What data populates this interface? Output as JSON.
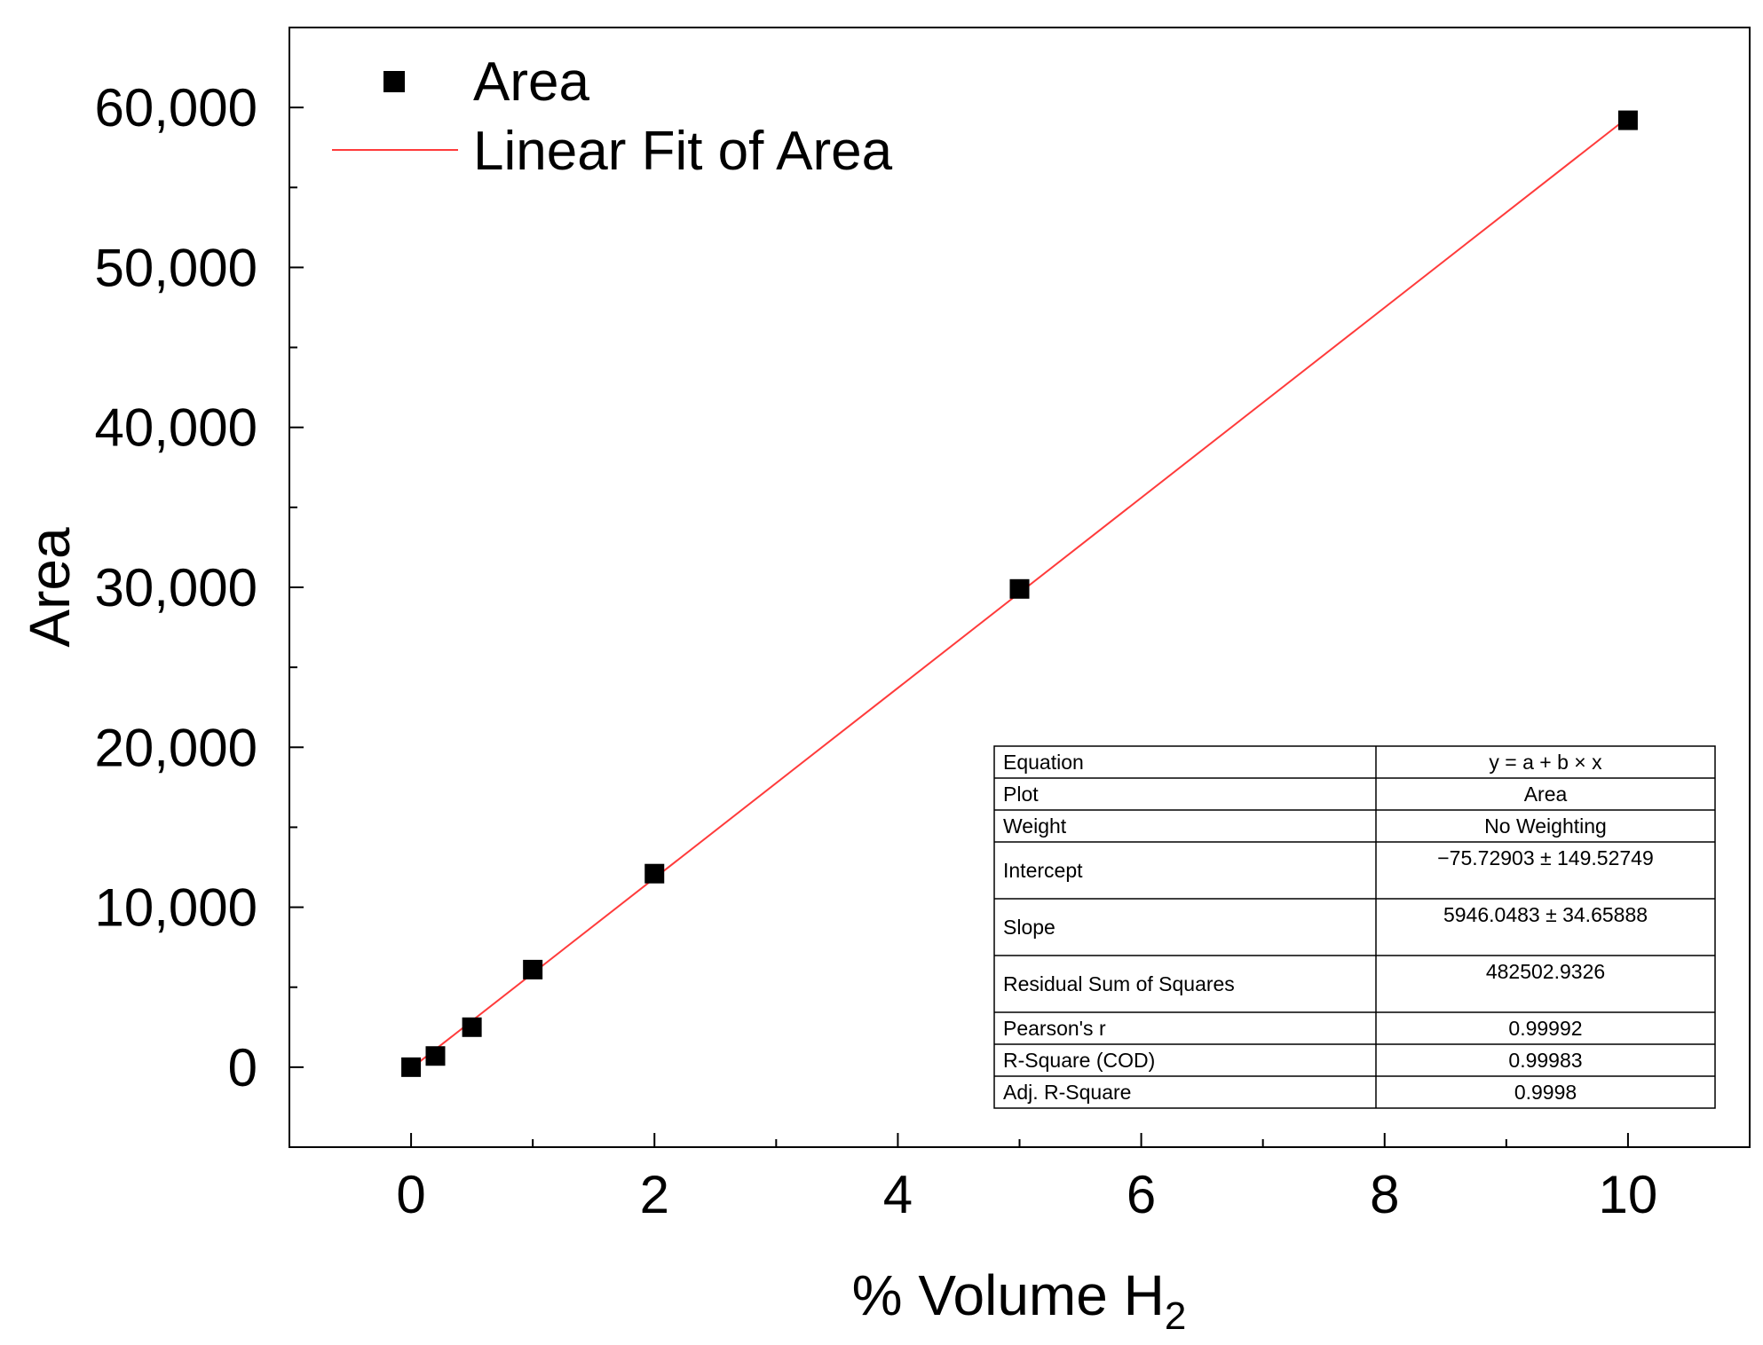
{
  "chart_data": {
    "type": "scatter",
    "title": "",
    "xlabel": "% Volume H",
    "xlabel_subscript": "2",
    "ylabel": "Area",
    "xlim": [
      -1,
      11
    ],
    "ylim": [
      -5000,
      65000
    ],
    "x_ticks": [
      0,
      2,
      4,
      6,
      8,
      10
    ],
    "x_tick_labels": [
      "0",
      "2",
      "4",
      "6",
      "8",
      "10"
    ],
    "y_ticks": [
      0,
      10000,
      20000,
      30000,
      40000,
      50000,
      60000
    ],
    "y_tick_labels": [
      "0",
      "10,000",
      "20,000",
      "30,000",
      "40,000",
      "50,000",
      "60,000"
    ],
    "grid": false,
    "legend_position": "top-left",
    "series": [
      {
        "name": "Area",
        "type": "scatter",
        "marker": "square",
        "color": "#000000",
        "x": [
          0,
          0.2,
          0.5,
          1,
          2,
          5,
          10
        ],
        "y": [
          0,
          700,
          2500,
          6100,
          12100,
          29900,
          59200
        ]
      },
      {
        "name": "Linear Fit of Area",
        "type": "line",
        "color": "#ff3b3b",
        "x": [
          0,
          10
        ],
        "y": [
          -75.72903,
          59384.75397
        ]
      }
    ],
    "fit_table": {
      "rows": [
        {
          "label": "Equation",
          "value": "y = a + b × x"
        },
        {
          "label": "Plot",
          "value": "Area"
        },
        {
          "label": "Weight",
          "value": "No Weighting"
        },
        {
          "label": "Intercept",
          "value": "−75.72903 ± 149.52749"
        },
        {
          "label": "Slope",
          "value": "5946.0483 ± 34.65888"
        },
        {
          "label": "Residual Sum of Squares",
          "value": "482502.9326"
        },
        {
          "label": "Pearson's r",
          "value": "0.99992"
        },
        {
          "label": "R-Square (COD)",
          "value": "0.99983"
        },
        {
          "label": "Adj. R-Square",
          "value": "0.9998"
        }
      ]
    }
  }
}
